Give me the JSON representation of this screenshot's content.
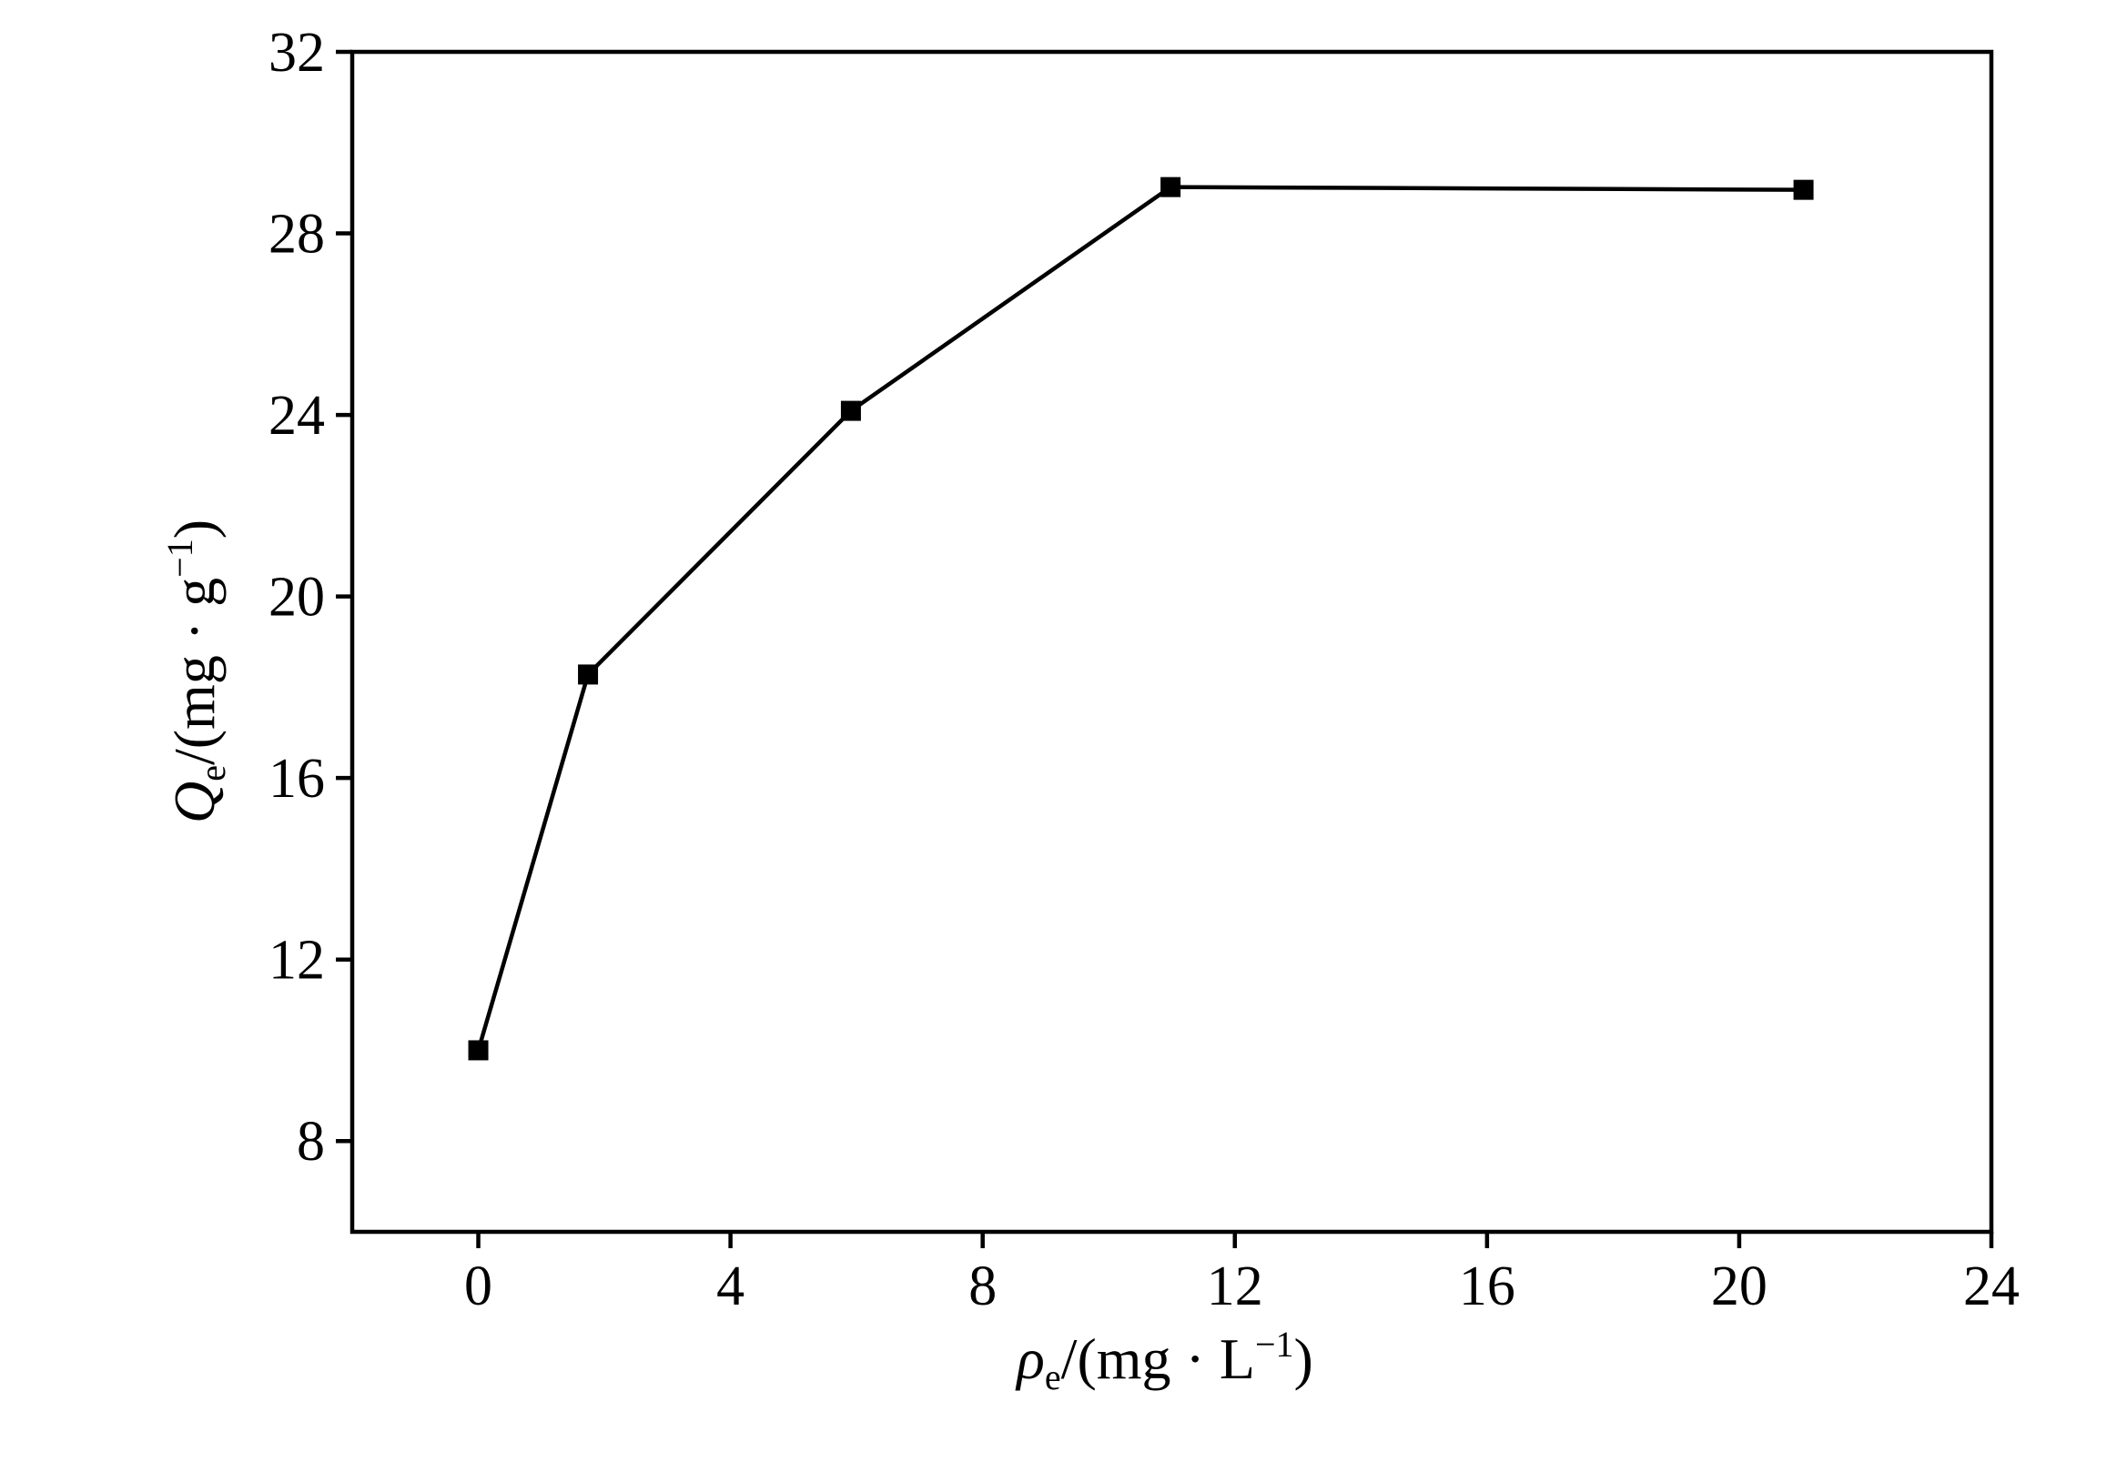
{
  "chart_data": {
    "type": "line",
    "x_label": {
      "symbol": "ρ",
      "subscript": "e",
      "unit": "/(mg · L",
      "superscript": "−1",
      "close": ")"
    },
    "y_label": {
      "symbol": "Q",
      "subscript": "e",
      "unit": "/(mg · g",
      "superscript": "−1",
      "close": ")"
    },
    "x": [
      0,
      1.74,
      5.91,
      10.98,
      21.02
    ],
    "series": [
      {
        "color": "#000000",
        "marker": "square",
        "values": [
          10.0,
          18.28,
          24.09,
          29.02,
          28.96
        ]
      }
    ],
    "xlim": [
      -2,
      24
    ],
    "xticks": [
      0,
      4,
      8,
      12,
      16,
      20,
      24
    ],
    "ylim": [
      6,
      32
    ],
    "yticks": [
      8,
      12,
      16,
      20,
      24,
      28,
      32
    ],
    "grid": false
  }
}
